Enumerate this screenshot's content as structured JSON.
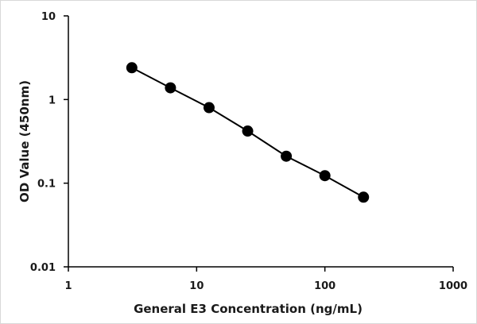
{
  "chart_data": {
    "type": "line",
    "title": "",
    "xlabel": "General E3 Concentration (ng/mL)",
    "ylabel": "OD Value (450nm)",
    "x_scale": "log",
    "y_scale": "log",
    "xlim": [
      1,
      1000
    ],
    "ylim": [
      0.01,
      10
    ],
    "x_ticks": [
      "1",
      "10",
      "100",
      "1000"
    ],
    "y_ticks": [
      "0.01",
      "0.1",
      "1",
      "10"
    ],
    "grid": false,
    "legend": "none",
    "series": [
      {
        "x": [
          3.125,
          6.25,
          12.5,
          25,
          50,
          100,
          200
        ],
        "y": [
          2.4,
          1.38,
          0.8,
          0.42,
          0.21,
          0.123,
          0.068
        ],
        "marker": "circle",
        "color": "#000000"
      }
    ]
  }
}
